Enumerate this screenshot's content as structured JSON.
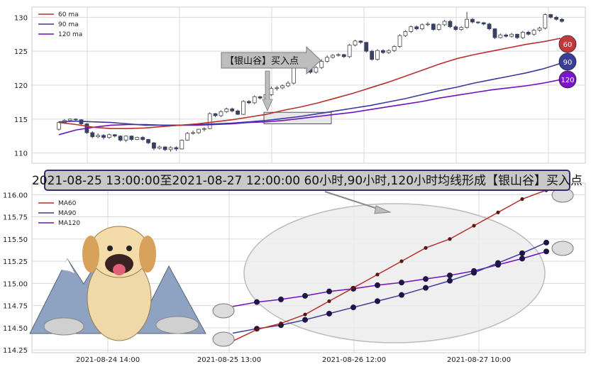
{
  "banner": {
    "text": "2021-08-25 13:00:00至2021-08-27 12:00:00 60小时,90小时,120小时均线形成【银山谷】买入点"
  },
  "callout": {
    "text": "【银山谷】买入点"
  },
  "badges": [
    {
      "label": "60",
      "color": "#c0393b"
    },
    {
      "label": "90",
      "color": "#3a3e9a"
    },
    {
      "label": "120",
      "color": "#7a16c8"
    }
  ],
  "colors": {
    "ma60": "#b5302c",
    "ma90": "#3a3a9a",
    "ma120": "#7010c0",
    "candle_down": "#3a4060",
    "grid": "#d9d9d9"
  },
  "chart_data": [
    {
      "type": "candlestick",
      "ylim": [
        108.5,
        131.5
      ],
      "yticks": [
        "110",
        "115",
        "120",
        "125",
        "130"
      ],
      "ytick_values": [
        110,
        115,
        120,
        125,
        130
      ],
      "grid": true,
      "legend_position": "top-left",
      "legend": [
        "60 ma",
        "90 ma",
        "120 ma"
      ],
      "candles": [
        [
          113.5,
          114.5,
          113.3,
          114.7
        ],
        [
          114.5,
          114.8,
          114.3,
          115.0
        ],
        [
          114.8,
          115.0,
          114.6,
          115.1
        ],
        [
          115.0,
          114.9,
          114.8,
          115.1
        ],
        [
          114.9,
          114.3,
          114.1,
          115.0
        ],
        [
          114.3,
          113.0,
          112.8,
          114.4
        ],
        [
          113.0,
          112.4,
          112.2,
          113.2
        ],
        [
          112.4,
          112.6,
          112.2,
          112.9
        ],
        [
          112.6,
          112.3,
          112.0,
          112.8
        ],
        [
          112.3,
          112.7,
          112.1,
          112.9
        ],
        [
          112.7,
          112.5,
          112.3,
          112.8
        ],
        [
          112.5,
          111.9,
          111.7,
          112.6
        ],
        [
          111.9,
          112.5,
          111.6,
          112.6
        ],
        [
          112.5,
          112.0,
          111.8,
          112.6
        ],
        [
          112.0,
          112.3,
          111.9,
          112.4
        ],
        [
          112.3,
          112.0,
          111.8,
          112.5
        ],
        [
          112.0,
          111.5,
          111.3,
          112.1
        ],
        [
          111.5,
          110.7,
          110.4,
          111.6
        ],
        [
          110.7,
          110.9,
          110.5,
          111.1
        ],
        [
          110.9,
          110.5,
          110.3,
          111.0
        ],
        [
          110.5,
          110.8,
          110.2,
          111.0
        ],
        [
          110.8,
          110.6,
          110.3,
          111.0
        ],
        [
          110.6,
          111.9,
          110.5,
          112.0
        ],
        [
          111.9,
          112.9,
          111.8,
          113.1
        ],
        [
          112.9,
          113.0,
          112.7,
          113.3
        ],
        [
          113.0,
          113.5,
          112.8,
          113.6
        ],
        [
          113.5,
          113.6,
          113.2,
          113.8
        ],
        [
          113.6,
          115.8,
          113.5,
          116.0
        ],
        [
          115.8,
          115.5,
          115.3,
          115.9
        ],
        [
          115.5,
          116.1,
          115.3,
          116.3
        ],
        [
          116.1,
          116.5,
          115.9,
          116.7
        ],
        [
          116.5,
          116.2,
          116.0,
          116.7
        ],
        [
          116.2,
          115.7,
          115.6,
          116.4
        ],
        [
          115.7,
          117.6,
          115.6,
          117.8
        ],
        [
          117.6,
          117.4,
          117.2,
          117.8
        ],
        [
          117.4,
          118.3,
          117.2,
          118.5
        ],
        [
          118.3,
          118.1,
          117.9,
          118.4
        ],
        [
          118.1,
          118.6,
          117.9,
          118.8
        ],
        [
          118.6,
          119.5,
          118.4,
          119.8
        ],
        [
          119.5,
          119.6,
          119.2,
          119.9
        ],
        [
          119.6,
          119.9,
          119.4,
          120.1
        ],
        [
          119.9,
          120.3,
          119.7,
          120.6
        ],
        [
          120.3,
          122.8,
          120.1,
          123.2
        ],
        [
          122.8,
          123.1,
          122.7,
          123.4
        ],
        [
          123.1,
          122.6,
          122.4,
          123.3
        ],
        [
          122.6,
          121.9,
          121.7,
          122.7
        ],
        [
          121.9,
          122.6,
          121.7,
          122.8
        ],
        [
          122.6,
          123.5,
          122.4,
          123.8
        ],
        [
          123.5,
          124.1,
          123.3,
          124.4
        ],
        [
          124.1,
          124.4,
          123.9,
          124.6
        ],
        [
          124.4,
          124.5,
          124.2,
          124.7
        ],
        [
          124.5,
          124.2,
          124.0,
          124.6
        ],
        [
          124.2,
          125.9,
          124.0,
          126.1
        ],
        [
          125.9,
          126.5,
          125.7,
          126.7
        ],
        [
          126.5,
          126.3,
          126.1,
          126.6
        ],
        [
          126.3,
          125.0,
          124.8,
          126.4
        ],
        [
          125.0,
          123.8,
          123.6,
          125.2
        ],
        [
          123.8,
          125.1,
          123.6,
          125.3
        ],
        [
          125.1,
          124.8,
          124.6,
          125.3
        ],
        [
          124.8,
          125.1,
          124.6,
          125.3
        ],
        [
          125.1,
          125.7,
          124.9,
          125.9
        ],
        [
          125.7,
          127.3,
          125.5,
          127.5
        ],
        [
          127.3,
          127.9,
          127.1,
          128.1
        ],
        [
          127.9,
          128.6,
          127.7,
          128.8
        ],
        [
          128.6,
          128.3,
          128.1,
          128.8
        ],
        [
          128.3,
          128.9,
          128.1,
          129.1
        ],
        [
          128.9,
          129.0,
          128.7,
          129.3
        ],
        [
          129.0,
          128.2,
          128.0,
          129.1
        ],
        [
          128.2,
          128.9,
          128.0,
          129.1
        ],
        [
          128.9,
          129.4,
          128.7,
          129.6
        ],
        [
          129.4,
          128.6,
          128.4,
          129.6
        ],
        [
          128.6,
          128.2,
          128.0,
          128.8
        ],
        [
          128.2,
          128.5,
          128.0,
          128.7
        ],
        [
          128.5,
          129.7,
          128.3,
          130.8
        ],
        [
          129.7,
          129.3,
          129.1,
          129.9
        ],
        [
          129.3,
          129.2,
          129.0,
          129.4
        ],
        [
          129.2,
          129.0,
          128.8,
          129.3
        ],
        [
          129.0,
          128.3,
          128.1,
          129.2
        ],
        [
          128.3,
          127.0,
          126.8,
          128.4
        ],
        [
          127.0,
          127.4,
          126.9,
          127.6
        ],
        [
          127.4,
          127.2,
          127.0,
          127.6
        ],
        [
          127.2,
          127.5,
          127.0,
          127.7
        ],
        [
          127.5,
          127.0,
          126.8,
          127.6
        ],
        [
          127.0,
          127.8,
          126.8,
          128.0
        ],
        [
          127.8,
          127.5,
          127.3,
          128.0
        ],
        [
          127.5,
          128.1,
          127.3,
          128.3
        ],
        [
          128.1,
          128.4,
          127.9,
          128.6
        ],
        [
          128.4,
          130.4,
          128.2,
          130.6
        ],
        [
          130.4,
          130.0,
          129.8,
          130.5
        ],
        [
          130.0,
          129.7,
          129.5,
          130.2
        ],
        [
          129.7,
          129.4,
          129.2,
          129.9
        ]
      ],
      "ma60": [
        114.5,
        114.2,
        113.8,
        113.6,
        113.6,
        113.7,
        113.9,
        114.1,
        114.3,
        114.6,
        114.9,
        115.3,
        115.7,
        116.3,
        116.8,
        117.4,
        118.1,
        118.8,
        119.6,
        120.4,
        121.3,
        122.2,
        123.1,
        123.9,
        124.5,
        125.0,
        125.5,
        126.0,
        126.4,
        126.9
      ],
      "ma90": [
        114.6,
        114.7,
        114.6,
        114.5,
        114.3,
        114.1,
        114.1,
        114.1,
        114.2,
        114.3,
        114.4,
        114.6,
        114.8,
        115.1,
        115.4,
        115.8,
        116.2,
        116.6,
        117.0,
        117.5,
        118.0,
        118.6,
        119.2,
        119.7,
        120.3,
        120.8,
        121.3,
        121.8,
        122.4,
        123.2
      ],
      "ma120": [
        112.7,
        113.4,
        113.8,
        114.1,
        114.2,
        114.2,
        114.1,
        114.1,
        114.1,
        114.2,
        114.3,
        114.5,
        114.6,
        114.8,
        115.1,
        115.4,
        115.7,
        116.0,
        116.4,
        116.8,
        117.2,
        117.6,
        118.1,
        118.5,
        118.9,
        119.3,
        119.6,
        119.9,
        120.3,
        120.8
      ]
    },
    {
      "type": "line",
      "ylim": [
        114.22,
        116.13
      ],
      "yticks": [
        "114.25",
        "114.50",
        "114.75",
        "115.00",
        "115.25",
        "115.50",
        "115.75",
        "116.00"
      ],
      "ytick_values": [
        114.25,
        114.5,
        114.75,
        115.0,
        115.25,
        115.5,
        115.75,
        116.0
      ],
      "xticks": [
        "2021-08-24 14:00",
        "2021-08-25 13:00",
        "2021-08-26 12:00",
        "2021-08-27 10:00"
      ],
      "grid": true,
      "legend_position": "top-left",
      "series": [
        {
          "name": "MA60",
          "values": [
            114.35,
            114.48,
            114.55,
            114.65,
            114.8,
            114.95,
            115.1,
            115.25,
            115.4,
            115.5,
            115.65,
            115.8,
            115.95,
            116.05
          ]
        },
        {
          "name": "MA90",
          "values": [
            114.44,
            114.49,
            114.53,
            114.59,
            114.66,
            114.73,
            114.8,
            114.87,
            114.95,
            115.03,
            115.12,
            115.23,
            115.34,
            115.46
          ]
        },
        {
          "name": "MA120",
          "values": [
            114.74,
            114.79,
            114.82,
            114.86,
            114.91,
            114.94,
            114.98,
            115.01,
            115.05,
            115.09,
            115.14,
            115.21,
            115.28,
            115.36
          ]
        }
      ]
    }
  ]
}
